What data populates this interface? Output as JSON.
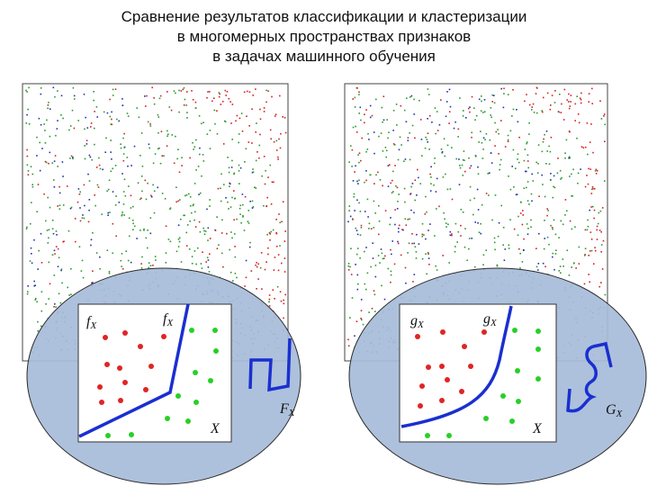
{
  "title": {
    "line1": "Сравнение результатов классификации и кластеризации",
    "line2": "в многомерных пространствах признаков",
    "line3": "в задачах машинного обучения"
  },
  "colors": {
    "class_red": "#d42020",
    "class_green": "#2a9a2a",
    "class_blue": "#2233aa",
    "ellipse_fill": "#a6bcd9",
    "ellipse_stroke": "#2a2a2a",
    "boundary": "#1a2fd0",
    "inset_red": "#e02424",
    "inset_green": "#27d027"
  },
  "panels": [
    {
      "name": "left",
      "inset_label_left": "f",
      "inset_label_left_sub": "X",
      "inset_label_right": "f",
      "inset_label_right_sub": "X",
      "axis_label": "X",
      "outer_label": "F",
      "outer_label_sub": "X",
      "boundary_type": "piecewise-linear"
    },
    {
      "name": "right",
      "inset_label_left": "g",
      "inset_label_left_sub": "X",
      "inset_label_right": "g",
      "inset_label_right_sub": "X",
      "axis_label": "X",
      "outer_label": "G",
      "outer_label_sub": "X",
      "boundary_type": "curved"
    }
  ]
}
